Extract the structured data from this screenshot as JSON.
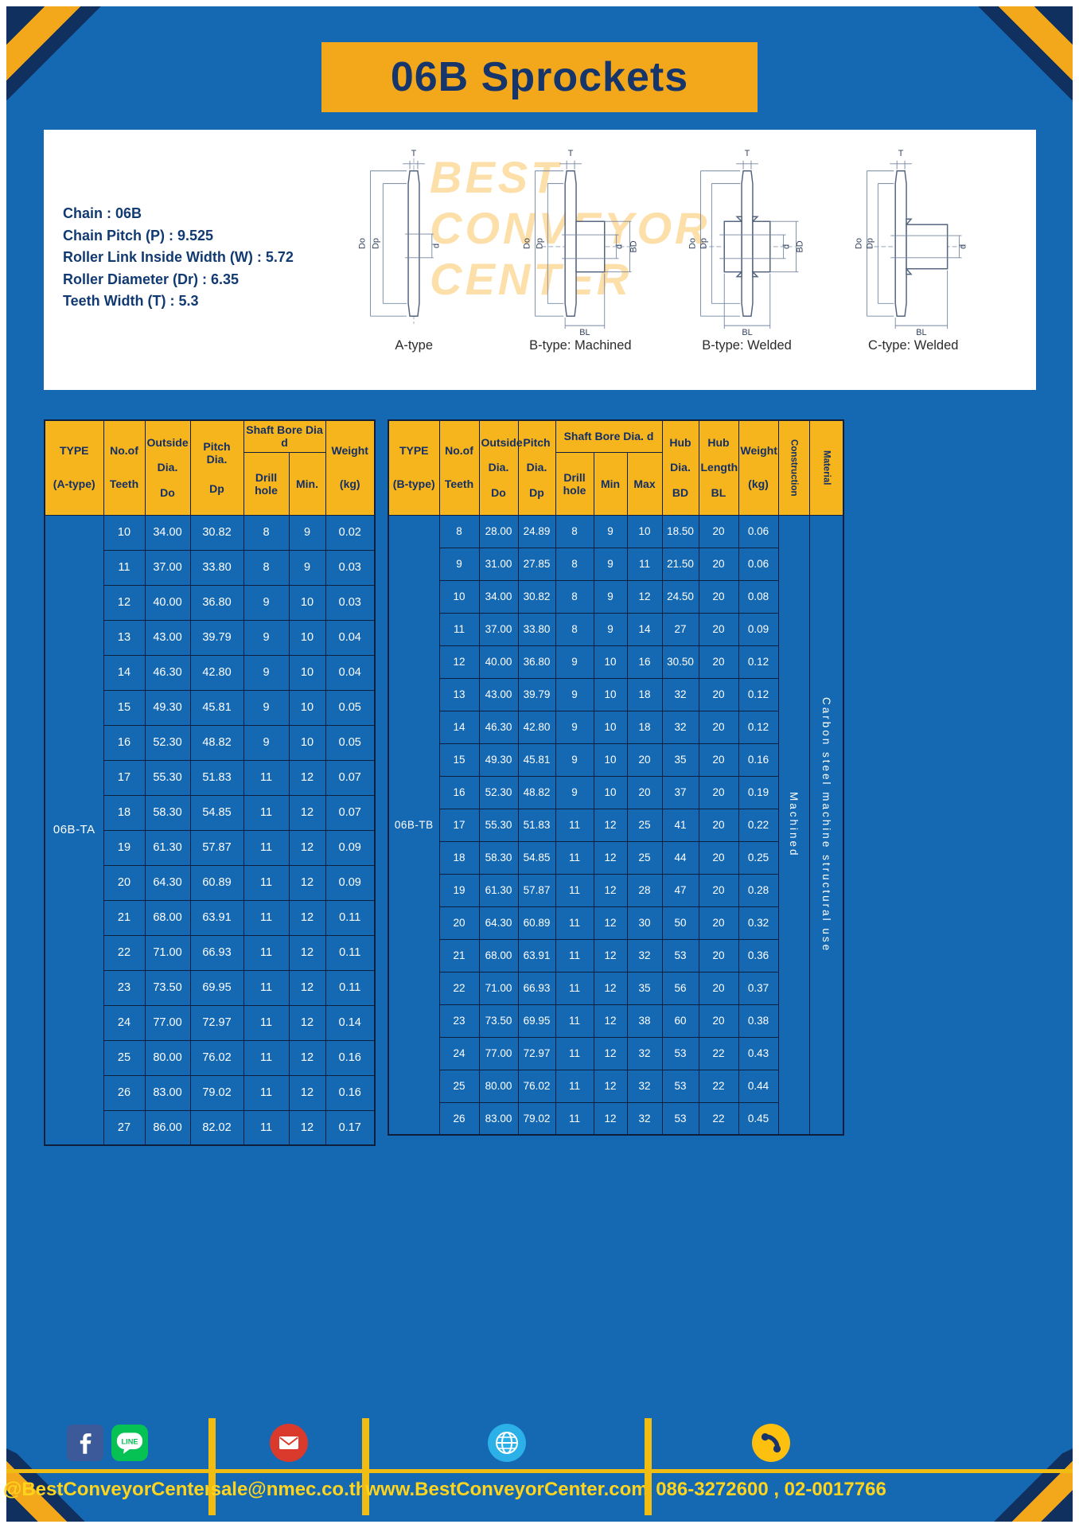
{
  "title": "06B Sprockets",
  "colors": {
    "page_blue": "#1569b3",
    "accent_yellow": "#f3a81c",
    "header_yellow": "#f6b41d",
    "navy": "#15356b",
    "footer_yellow": "#ffd41c"
  },
  "specs": {
    "lines": [
      "Chain  :  06B",
      "Chain Pitch (P)  :  9.525",
      "Roller Link Inside Width (W)  :  5.72",
      "Roller Diameter (Dr)  :  6.35",
      "Teeth Width (T)  :  5.3"
    ],
    "watermark": [
      "BEST",
      "CONVEYOR",
      "CENTER"
    ],
    "diagrams": [
      {
        "caption": "A-type",
        "dims": {
          "t": "T",
          "outer": "Do",
          "pitch": "Dp",
          "bore": "d"
        }
      },
      {
        "caption": "B-type: Machined",
        "dims": {
          "t": "T",
          "outer": "Do",
          "pitch": "Dp",
          "bore": "d",
          "hub": "BD",
          "hublen": "BL"
        }
      },
      {
        "caption": "B-type: Welded",
        "dims": {
          "t": "T",
          "outer": "Do",
          "pitch": "Dp",
          "bore": "d",
          "hub": "BD",
          "hublen": "BL"
        }
      },
      {
        "caption": "C-type: Welded",
        "dims": {
          "t": "T",
          "outer": "Do",
          "pitch": "Dp",
          "bore": "d",
          "hublen": "BL"
        }
      }
    ]
  },
  "table_a": {
    "type_label": "06B-TA",
    "header": {
      "type": [
        "TYPE",
        "(A-type)"
      ],
      "teeth": [
        "No.of",
        "Teeth"
      ],
      "outside": [
        "Outside",
        "Dia.",
        "Do"
      ],
      "pitch": [
        "Pitch Dia.",
        "Dp"
      ],
      "shaft_group": "Shaft Bore Dia d",
      "drill": "Drill hole",
      "min": "Min.",
      "weight": [
        "Weight",
        "(kg)"
      ]
    },
    "rows": [
      [
        "10",
        "34.00",
        "30.82",
        "8",
        "9",
        "0.02"
      ],
      [
        "11",
        "37.00",
        "33.80",
        "8",
        "9",
        "0.03"
      ],
      [
        "12",
        "40.00",
        "36.80",
        "9",
        "10",
        "0.03"
      ],
      [
        "13",
        "43.00",
        "39.79",
        "9",
        "10",
        "0.04"
      ],
      [
        "14",
        "46.30",
        "42.80",
        "9",
        "10",
        "0.04"
      ],
      [
        "15",
        "49.30",
        "45.81",
        "9",
        "10",
        "0.05"
      ],
      [
        "16",
        "52.30",
        "48.82",
        "9",
        "10",
        "0.05"
      ],
      [
        "17",
        "55.30",
        "51.83",
        "11",
        "12",
        "0.07"
      ],
      [
        "18",
        "58.30",
        "54.85",
        "11",
        "12",
        "0.07"
      ],
      [
        "19",
        "61.30",
        "57.87",
        "11",
        "12",
        "0.09"
      ],
      [
        "20",
        "64.30",
        "60.89",
        "11",
        "12",
        "0.09"
      ],
      [
        "21",
        "68.00",
        "63.91",
        "11",
        "12",
        "0.11"
      ],
      [
        "22",
        "71.00",
        "66.93",
        "11",
        "12",
        "0.11"
      ],
      [
        "23",
        "73.50",
        "69.95",
        "11",
        "12",
        "0.11"
      ],
      [
        "24",
        "77.00",
        "72.97",
        "11",
        "12",
        "0.14"
      ],
      [
        "25",
        "80.00",
        "76.02",
        "11",
        "12",
        "0.16"
      ],
      [
        "26",
        "83.00",
        "79.02",
        "11",
        "12",
        "0.16"
      ],
      [
        "27",
        "86.00",
        "82.02",
        "11",
        "12",
        "0.17"
      ]
    ]
  },
  "table_b": {
    "type_label": "06B-TB",
    "construction": "Machined",
    "material": "Carbon steel machine structural use",
    "header": {
      "type": [
        "TYPE",
        "(B-type)"
      ],
      "teeth": [
        "No.of",
        "Teeth"
      ],
      "outside": [
        "Outside",
        "Dia.",
        "Do"
      ],
      "pitch": [
        "Pitch",
        "Dia.",
        "Dp"
      ],
      "shaft_group": "Shaft Bore Dia.  d",
      "drill": "Drill hole",
      "min": "Min",
      "max": "Max",
      "hub_dia": [
        "Hub",
        "Dia.",
        "BD"
      ],
      "hub_len": [
        "Hub",
        "Length",
        "BL"
      ],
      "weight": [
        "Weight",
        "(kg)"
      ],
      "construction": "Construction",
      "material": "Material"
    },
    "rows": [
      [
        "8",
        "28.00",
        "24.89",
        "8",
        "9",
        "10",
        "18.50",
        "20",
        "0.06"
      ],
      [
        "9",
        "31.00",
        "27.85",
        "8",
        "9",
        "11",
        "21.50",
        "20",
        "0.06"
      ],
      [
        "10",
        "34.00",
        "30.82",
        "8",
        "9",
        "12",
        "24.50",
        "20",
        "0.08"
      ],
      [
        "11",
        "37.00",
        "33.80",
        "8",
        "9",
        "14",
        "27",
        "20",
        "0.09"
      ],
      [
        "12",
        "40.00",
        "36.80",
        "9",
        "10",
        "16",
        "30.50",
        "20",
        "0.12"
      ],
      [
        "13",
        "43.00",
        "39.79",
        "9",
        "10",
        "18",
        "32",
        "20",
        "0.12"
      ],
      [
        "14",
        "46.30",
        "42.80",
        "9",
        "10",
        "18",
        "32",
        "20",
        "0.12"
      ],
      [
        "15",
        "49.30",
        "45.81",
        "9",
        "10",
        "20",
        "35",
        "20",
        "0.16"
      ],
      [
        "16",
        "52.30",
        "48.82",
        "9",
        "10",
        "20",
        "37",
        "20",
        "0.19"
      ],
      [
        "17",
        "55.30",
        "51.83",
        "11",
        "12",
        "25",
        "41",
        "20",
        "0.22"
      ],
      [
        "18",
        "58.30",
        "54.85",
        "11",
        "12",
        "25",
        "44",
        "20",
        "0.25"
      ],
      [
        "19",
        "61.30",
        "57.87",
        "11",
        "12",
        "28",
        "47",
        "20",
        "0.28"
      ],
      [
        "20",
        "64.30",
        "60.89",
        "11",
        "12",
        "30",
        "50",
        "20",
        "0.32"
      ],
      [
        "21",
        "68.00",
        "63.91",
        "11",
        "12",
        "32",
        "53",
        "20",
        "0.36"
      ],
      [
        "22",
        "71.00",
        "66.93",
        "11",
        "12",
        "35",
        "56",
        "20",
        "0.37"
      ],
      [
        "23",
        "73.50",
        "69.95",
        "11",
        "12",
        "38",
        "60",
        "20",
        "0.38"
      ],
      [
        "24",
        "77.00",
        "72.97",
        "11",
        "12",
        "32",
        "53",
        "22",
        "0.43"
      ],
      [
        "25",
        "80.00",
        "76.02",
        "11",
        "12",
        "32",
        "53",
        "22",
        "0.44"
      ],
      [
        "26",
        "83.00",
        "79.02",
        "11",
        "12",
        "32",
        "53",
        "22",
        "0.45"
      ]
    ]
  },
  "footer": {
    "icons": [
      "facebook-icon",
      "line-icon",
      "email-icon",
      "globe-icon",
      "phone-icon"
    ],
    "line_label": "LINE",
    "social": "@BestConveyorCenter",
    "email": "sale@nmec.co.th",
    "website": "www.BestConveyorCenter.com",
    "phone": "086-3272600 , 02-0017766"
  }
}
